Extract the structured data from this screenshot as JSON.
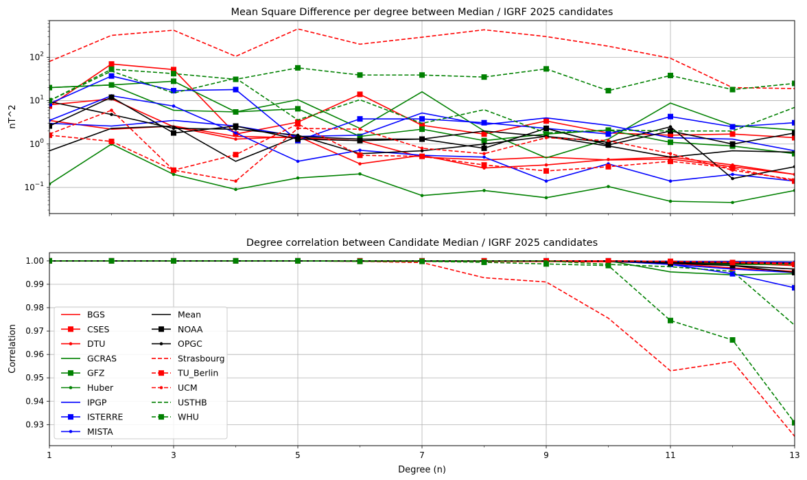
{
  "chart_data": [
    {
      "type": "line",
      "title": "Mean Square Difference per degree between Median / IGRF 2025 candidates",
      "xlabel": "",
      "ylabel": "nT^2",
      "yscale": "log",
      "xlim": [
        1,
        13
      ],
      "ylim": [
        0.025,
        700
      ],
      "x": [
        1,
        2,
        3,
        4,
        5,
        6,
        7,
        8,
        9,
        10,
        11,
        12,
        13
      ],
      "xticks": [
        1,
        3,
        5,
        7,
        9,
        11,
        13
      ],
      "ytick_labels": [
        {
          "v": 0.1,
          "base": "10",
          "exp": "−1"
        },
        {
          "v": 1,
          "base": "10",
          "exp": "0"
        },
        {
          "v": 10,
          "base": "10",
          "exp": "1"
        },
        {
          "v": 100,
          "base": "10",
          "exp": "2"
        }
      ],
      "grid": true,
      "series": [
        {
          "name": "BGS",
          "values": [
            3.5,
            2.2,
            2.6,
            1.5,
            1.4,
            1.2,
            0.5,
            0.43,
            0.5,
            0.43,
            0.45,
            0.3,
            0.2
          ]
        },
        {
          "name": "CSES",
          "values": [
            7.5,
            70,
            52,
            1.7,
            3.2,
            14,
            2.7,
            1.7,
            3.4,
            1.8,
            1.6,
            1.7,
            1.4
          ]
        },
        {
          "name": "DTU",
          "values": [
            8,
            11,
            2.5,
            1.3,
            1.5,
            0.35,
            0.55,
            0.28,
            0.33,
            0.44,
            0.5,
            0.33,
            0.2
          ]
        },
        {
          "name": "GCRAS",
          "values": [
            20,
            23,
            6,
            5.5,
            10.5,
            2.3,
            16,
            2,
            0.48,
            1.3,
            8.8,
            2.7,
            2.1
          ]
        },
        {
          "name": "GFZ",
          "values": [
            20,
            23,
            28,
            5.5,
            6.5,
            1.5,
            2.2,
            1.2,
            1.7,
            2.1,
            1.1,
            0.9,
            0.6
          ]
        },
        {
          "name": "Huber",
          "values": [
            0.12,
            1,
            0.2,
            0.09,
            0.165,
            0.205,
            0.065,
            0.085,
            0.058,
            0.105,
            0.048,
            0.045,
            0.085
          ]
        },
        {
          "name": "IPGP",
          "values": [
            3,
            2.6,
            3.5,
            2.6,
            1.5,
            1.6,
            5.2,
            2.8,
            4,
            2.7,
            1.4,
            1.3,
            0.7
          ]
        },
        {
          "name": "ISTERRE",
          "values": [
            8.5,
            37,
            17,
            18,
            1.2,
            3.8,
            3.8,
            3.1,
            2.3,
            1.7,
            4.3,
            2.5,
            3.1
          ]
        },
        {
          "name": "MISTA",
          "values": [
            3.5,
            13,
            7.5,
            1.8,
            0.4,
            0.72,
            0.55,
            0.5,
            0.14,
            0.35,
            0.14,
            0.2,
            0.14
          ]
        },
        {
          "name": "Mean",
          "values": [
            0.7,
            2.3,
            2.6,
            0.4,
            1.5,
            1.3,
            1.3,
            2,
            1.5,
            0.9,
            0.5,
            0.7,
            0.65
          ]
        },
        {
          "name": "NOAA",
          "values": [
            2.6,
            12,
            1.8,
            2.6,
            1.3,
            1.2,
            1.3,
            0.8,
            2.3,
            0.95,
            2,
            1,
            1.8
          ]
        },
        {
          "name": "OPGC",
          "values": [
            9.5,
            4.8,
            2.3,
            2.2,
            1.6,
            0.6,
            0.7,
            1,
            1.5,
            1.1,
            2.5,
            0.16,
            0.3
          ]
        },
        {
          "name": "Strasbourg",
          "values": [
            80,
            320,
            420,
            105,
            450,
            200,
            290,
            430,
            300,
            180,
            95,
            20,
            19
          ]
        },
        {
          "name": "TU_Berlin",
          "values": [
            1.6,
            1.15,
            0.25,
            0.57,
            2.9,
            0.55,
            0.52,
            0.33,
            0.24,
            0.3,
            0.4,
            0.28,
            0.14
          ]
        },
        {
          "name": "UCM",
          "values": [
            1.7,
            6,
            0.25,
            0.14,
            2.3,
            2.2,
            0.8,
            0.6,
            1.4,
            1.2,
            0.6,
            0.25,
            0.15
          ]
        },
        {
          "name": "USTHB",
          "values": [
            10,
            48,
            15,
            33,
            3.6,
            10.5,
            3,
            6.2,
            1.8,
            2.1,
            2,
            2,
            7
          ]
        },
        {
          "name": "WHU",
          "values": [
            10,
            53,
            42,
            31,
            57,
            39,
            39,
            35,
            54,
            17,
            38,
            18,
            25
          ]
        }
      ]
    },
    {
      "type": "line",
      "title": "Degree correlation between Candidate Median / IGRF 2025 candidates",
      "xlabel": "Degree (n)",
      "ylabel": "Correlation",
      "yscale": "linear",
      "xlim": [
        1,
        13
      ],
      "ylim": [
        0.921,
        1.0035
      ],
      "x": [
        1,
        2,
        3,
        4,
        5,
        6,
        7,
        8,
        9,
        10,
        11,
        12,
        13
      ],
      "xticks": [
        1,
        3,
        5,
        7,
        9,
        11,
        13
      ],
      "yticks": [
        0.93,
        0.94,
        0.95,
        0.96,
        0.97,
        0.98,
        0.99,
        1.0
      ],
      "ytick_labels": [
        "0.93",
        "0.94",
        "0.95",
        "0.96",
        "0.97",
        "0.98",
        "0.99",
        "1.00"
      ],
      "grid": true,
      "legend_position": "lower-left",
      "series": [
        {
          "name": "BGS",
          "values": [
            1,
            1,
            1,
            1,
            1,
            1,
            1,
            1,
            1,
            1,
            0.9995,
            0.999,
            0.998
          ]
        },
        {
          "name": "CSES",
          "values": [
            1,
            1,
            1,
            1,
            1,
            0.9998,
            0.9998,
            0.9998,
            0.9997,
            0.9996,
            0.999,
            0.997,
            0.9955
          ]
        },
        {
          "name": "DTU",
          "values": [
            1,
            1,
            1,
            1,
            1,
            1,
            1,
            1,
            1,
            1,
            0.9998,
            0.9995,
            0.999
          ]
        },
        {
          "name": "GCRAS",
          "values": [
            1,
            1,
            1,
            1,
            1,
            1,
            1,
            1,
            1,
            1,
            0.9953,
            0.994,
            0.9945
          ]
        },
        {
          "name": "GFZ",
          "values": [
            1,
            1,
            1,
            1,
            1,
            1,
            1,
            1,
            1,
            1,
            0.9995,
            0.9985,
            0.9985
          ]
        },
        {
          "name": "Huber",
          "values": [
            1,
            1,
            1,
            1,
            1,
            1,
            1,
            1,
            1,
            1,
            0.9998,
            0.9997,
            0.9995
          ]
        },
        {
          "name": "IPGP",
          "values": [
            1,
            1,
            1,
            1,
            1,
            1,
            1,
            1,
            1,
            1,
            0.9985,
            0.9965,
            0.995
          ]
        },
        {
          "name": "ISTERRE",
          "values": [
            1,
            1,
            1,
            1,
            1,
            1,
            1,
            1,
            1,
            1,
            0.9985,
            0.9945,
            0.9885
          ]
        },
        {
          "name": "MISTA",
          "values": [
            1,
            1,
            1,
            1,
            1,
            1,
            1,
            1,
            1,
            1,
            0.9998,
            0.9997,
            0.9995
          ]
        },
        {
          "name": "Mean",
          "values": [
            1,
            1,
            1,
            1,
            1,
            1,
            1,
            1,
            1,
            1,
            0.9993,
            0.998,
            0.9965
          ]
        },
        {
          "name": "NOAA",
          "values": [
            1,
            1,
            1,
            1,
            1,
            1,
            1,
            1,
            1,
            1,
            0.999,
            0.998,
            0.995
          ]
        },
        {
          "name": "OPGC",
          "values": [
            1,
            1,
            1,
            1,
            1,
            1,
            1,
            1,
            1,
            1,
            0.9995,
            0.999,
            0.999
          ]
        },
        {
          "name": "Strasbourg",
          "values": [
            1,
            1,
            1,
            1,
            1,
            0.9998,
            0.9993,
            0.9928,
            0.991,
            0.9755,
            0.953,
            0.957,
            0.925
          ]
        },
        {
          "name": "TU_Berlin",
          "values": [
            1,
            1,
            1,
            1,
            1,
            1,
            1,
            1,
            1,
            1,
            0.9998,
            0.9993,
            0.9985
          ]
        },
        {
          "name": "UCM",
          "values": [
            1,
            1,
            1,
            1,
            1,
            1,
            1,
            1,
            1,
            1,
            0.9998,
            0.9995,
            0.999
          ]
        },
        {
          "name": "USTHB",
          "values": [
            1,
            1,
            1,
            1,
            1,
            1,
            1,
            1,
            1,
            0.9985,
            0.9975,
            0.9955,
            0.9725
          ]
        },
        {
          "name": "WHU",
          "values": [
            1,
            1,
            1,
            1,
            1,
            0.9998,
            0.9998,
            0.9994,
            0.9987,
            0.998,
            0.9745,
            0.9662,
            0.9308
          ]
        }
      ]
    }
  ],
  "series_styles": [
    {
      "name": "BGS",
      "color": "#ff0000",
      "dash": "solid",
      "marker": "none"
    },
    {
      "name": "CSES",
      "color": "#ff0000",
      "dash": "solid",
      "marker": "square"
    },
    {
      "name": "DTU",
      "color": "#ff0000",
      "dash": "solid",
      "marker": "dot"
    },
    {
      "name": "GCRAS",
      "color": "#008000",
      "dash": "solid",
      "marker": "none"
    },
    {
      "name": "GFZ",
      "color": "#008000",
      "dash": "solid",
      "marker": "square"
    },
    {
      "name": "Huber",
      "color": "#008000",
      "dash": "solid",
      "marker": "dot"
    },
    {
      "name": "IPGP",
      "color": "#0000ff",
      "dash": "solid",
      "marker": "none"
    },
    {
      "name": "ISTERRE",
      "color": "#0000ff",
      "dash": "solid",
      "marker": "square"
    },
    {
      "name": "MISTA",
      "color": "#0000ff",
      "dash": "solid",
      "marker": "dot"
    },
    {
      "name": "Mean",
      "color": "#000000",
      "dash": "solid",
      "marker": "none"
    },
    {
      "name": "NOAA",
      "color": "#000000",
      "dash": "solid",
      "marker": "square"
    },
    {
      "name": "OPGC",
      "color": "#000000",
      "dash": "solid",
      "marker": "dot"
    },
    {
      "name": "Strasbourg",
      "color": "#ff0000",
      "dash": "dashed",
      "marker": "none"
    },
    {
      "name": "TU_Berlin",
      "color": "#ff0000",
      "dash": "dashed",
      "marker": "square"
    },
    {
      "name": "UCM",
      "color": "#ff0000",
      "dash": "dashed",
      "marker": "dot"
    },
    {
      "name": "USTHB",
      "color": "#008000",
      "dash": "dashed",
      "marker": "none"
    },
    {
      "name": "WHU",
      "color": "#008000",
      "dash": "dashed",
      "marker": "square"
    }
  ],
  "grid_color": "#b0b0b0"
}
